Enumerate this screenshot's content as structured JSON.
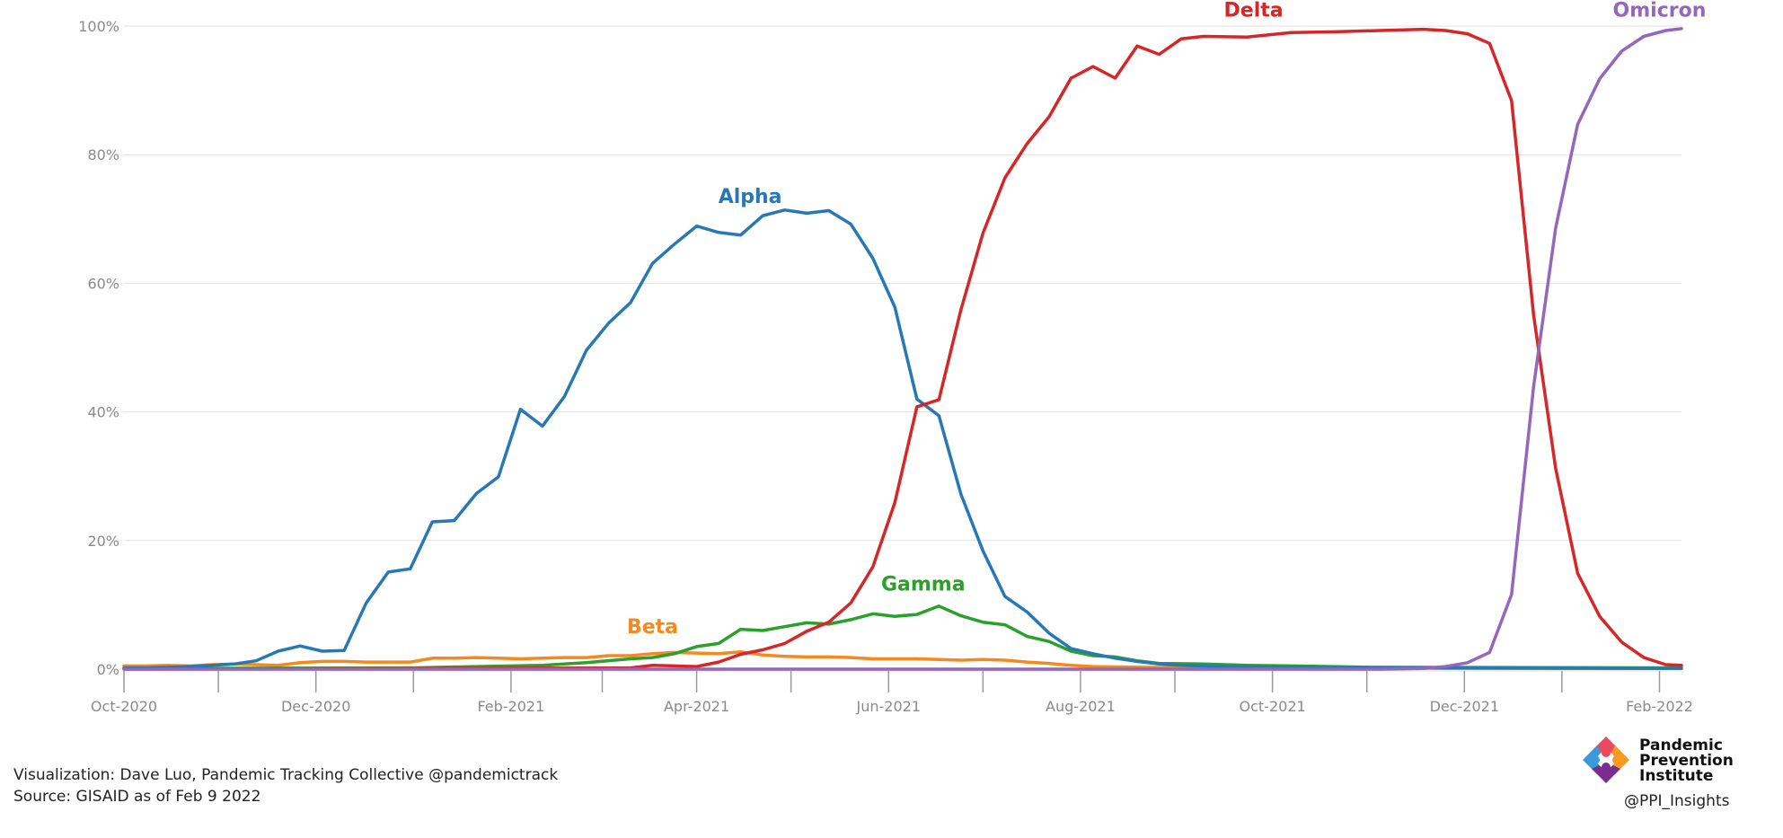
{
  "chart_data": {
    "type": "line",
    "ylim": [
      0,
      100
    ],
    "yticks": [
      {
        "value": 0,
        "label": "0%"
      },
      {
        "value": 20,
        "label": "20%"
      },
      {
        "value": 40,
        "label": "40%"
      },
      {
        "value": 60,
        "label": "60%"
      },
      {
        "value": 80,
        "label": "80%"
      },
      {
        "value": 100,
        "label": "100%"
      }
    ],
    "xlim": [
      "2020-10-01",
      "2022-02-08"
    ],
    "xticks": [
      {
        "date": "2020-10-01",
        "label": "Oct-2020"
      },
      {
        "date": "2020-12-01",
        "label": "Dec-2020"
      },
      {
        "date": "2021-02-01",
        "label": "Feb-2021"
      },
      {
        "date": "2021-04-01",
        "label": "Apr-2021"
      },
      {
        "date": "2021-06-01",
        "label": "Jun-2021"
      },
      {
        "date": "2021-08-01",
        "label": "Aug-2021"
      },
      {
        "date": "2021-10-01",
        "label": "Oct-2021"
      },
      {
        "date": "2021-12-01",
        "label": "Dec-2021"
      },
      {
        "date": "2022-02-01",
        "label": "Feb-2022"
      }
    ],
    "grid": true,
    "legend": "inline labels",
    "series": [
      {
        "name": "Alpha",
        "color": "#2878b5",
        "label_at": {
          "date": "2021-04-18",
          "value": 72.5
        },
        "points": [
          [
            "2020-10-01",
            0.2
          ],
          [
            "2020-10-08",
            0.2
          ],
          [
            "2020-10-15",
            0.3
          ],
          [
            "2020-10-22",
            0.4
          ],
          [
            "2020-10-29",
            0.6
          ],
          [
            "2020-11-05",
            0.8
          ],
          [
            "2020-11-12",
            1.3
          ],
          [
            "2020-11-19",
            2.8
          ],
          [
            "2020-11-26",
            3.6
          ],
          [
            "2020-12-03",
            2.8
          ],
          [
            "2020-12-10",
            2.9
          ],
          [
            "2020-12-17",
            10.3
          ],
          [
            "2020-12-24",
            15.1
          ],
          [
            "2020-12-31",
            15.6
          ],
          [
            "2021-01-07",
            22.9
          ],
          [
            "2021-01-14",
            23.1
          ],
          [
            "2021-01-21",
            27.3
          ],
          [
            "2021-01-28",
            29.9
          ],
          [
            "2021-02-04",
            40.4
          ],
          [
            "2021-02-11",
            37.8
          ],
          [
            "2021-02-18",
            42.4
          ],
          [
            "2021-02-25",
            49.6
          ],
          [
            "2021-03-04",
            53.8
          ],
          [
            "2021-03-11",
            57.0
          ],
          [
            "2021-03-18",
            63.1
          ],
          [
            "2021-03-25",
            66.1
          ],
          [
            "2021-04-01",
            68.9
          ],
          [
            "2021-04-08",
            67.9
          ],
          [
            "2021-04-15",
            67.5
          ],
          [
            "2021-04-22",
            70.5
          ],
          [
            "2021-04-29",
            71.4
          ],
          [
            "2021-05-06",
            70.9
          ],
          [
            "2021-05-13",
            71.3
          ],
          [
            "2021-05-20",
            69.2
          ],
          [
            "2021-05-27",
            63.9
          ],
          [
            "2021-06-03",
            56.3
          ],
          [
            "2021-06-10",
            42.0
          ],
          [
            "2021-06-17",
            39.4
          ],
          [
            "2021-06-24",
            27.2
          ],
          [
            "2021-07-01",
            18.4
          ],
          [
            "2021-07-08",
            11.3
          ],
          [
            "2021-07-15",
            8.9
          ],
          [
            "2021-07-22",
            5.6
          ],
          [
            "2021-07-29",
            3.2
          ],
          [
            "2021-08-05",
            2.4
          ],
          [
            "2021-08-12",
            1.7
          ],
          [
            "2021-08-19",
            1.2
          ],
          [
            "2021-08-26",
            0.8
          ],
          [
            "2021-09-02",
            0.6
          ],
          [
            "2021-09-16",
            0.4
          ],
          [
            "2021-10-01",
            0.3
          ],
          [
            "2021-11-01",
            0.2
          ],
          [
            "2022-02-08",
            0.1
          ]
        ]
      },
      {
        "name": "Beta",
        "color": "#f48a1d",
        "label_at": {
          "date": "2021-03-18",
          "value": 5.6
        },
        "points": [
          [
            "2020-10-01",
            0.5
          ],
          [
            "2020-10-08",
            0.5
          ],
          [
            "2020-10-15",
            0.6
          ],
          [
            "2020-10-22",
            0.5
          ],
          [
            "2020-10-29",
            0.7
          ],
          [
            "2020-11-05",
            0.8
          ],
          [
            "2020-11-12",
            0.7
          ],
          [
            "2020-11-19",
            0.6
          ],
          [
            "2020-11-26",
            1.0
          ],
          [
            "2020-12-03",
            1.2
          ],
          [
            "2020-12-10",
            1.2
          ],
          [
            "2020-12-17",
            1.1
          ],
          [
            "2020-12-24",
            1.1
          ],
          [
            "2020-12-31",
            1.1
          ],
          [
            "2021-01-07",
            1.7
          ],
          [
            "2021-01-14",
            1.7
          ],
          [
            "2021-01-21",
            1.8
          ],
          [
            "2021-01-28",
            1.7
          ],
          [
            "2021-02-04",
            1.6
          ],
          [
            "2021-02-11",
            1.7
          ],
          [
            "2021-02-18",
            1.8
          ],
          [
            "2021-02-25",
            1.8
          ],
          [
            "2021-03-04",
            2.1
          ],
          [
            "2021-03-11",
            2.1
          ],
          [
            "2021-03-18",
            2.4
          ],
          [
            "2021-03-25",
            2.6
          ],
          [
            "2021-04-01",
            2.5
          ],
          [
            "2021-04-08",
            2.4
          ],
          [
            "2021-04-15",
            2.7
          ],
          [
            "2021-04-22",
            2.2
          ],
          [
            "2021-04-29",
            2.0
          ],
          [
            "2021-05-06",
            1.9
          ],
          [
            "2021-05-13",
            1.9
          ],
          [
            "2021-05-20",
            1.8
          ],
          [
            "2021-05-27",
            1.6
          ],
          [
            "2021-06-03",
            1.6
          ],
          [
            "2021-06-10",
            1.6
          ],
          [
            "2021-06-17",
            1.5
          ],
          [
            "2021-06-24",
            1.4
          ],
          [
            "2021-07-01",
            1.5
          ],
          [
            "2021-07-08",
            1.4
          ],
          [
            "2021-07-15",
            1.1
          ],
          [
            "2021-07-22",
            0.9
          ],
          [
            "2021-07-29",
            0.6
          ],
          [
            "2021-08-05",
            0.4
          ],
          [
            "2021-08-19",
            0.3
          ],
          [
            "2021-09-16",
            0.2
          ],
          [
            "2022-02-08",
            0.1
          ]
        ]
      },
      {
        "name": "Gamma",
        "color": "#2ca02c",
        "label_at": {
          "date": "2021-06-12",
          "value": 12.2
        },
        "points": [
          [
            "2020-10-01",
            0.1
          ],
          [
            "2021-01-01",
            0.2
          ],
          [
            "2021-01-21",
            0.4
          ],
          [
            "2021-02-11",
            0.6
          ],
          [
            "2021-02-25",
            1.0
          ],
          [
            "2021-03-11",
            1.6
          ],
          [
            "2021-03-18",
            1.8
          ],
          [
            "2021-03-25",
            2.4
          ],
          [
            "2021-04-01",
            3.5
          ],
          [
            "2021-04-08",
            4.0
          ],
          [
            "2021-04-15",
            6.2
          ],
          [
            "2021-04-22",
            6.0
          ],
          [
            "2021-04-29",
            6.6
          ],
          [
            "2021-05-06",
            7.2
          ],
          [
            "2021-05-13",
            7.0
          ],
          [
            "2021-05-20",
            7.7
          ],
          [
            "2021-05-27",
            8.6
          ],
          [
            "2021-06-03",
            8.2
          ],
          [
            "2021-06-10",
            8.5
          ],
          [
            "2021-06-17",
            9.8
          ],
          [
            "2021-06-24",
            8.3
          ],
          [
            "2021-07-01",
            7.3
          ],
          [
            "2021-07-08",
            6.9
          ],
          [
            "2021-07-15",
            5.1
          ],
          [
            "2021-07-22",
            4.3
          ],
          [
            "2021-07-29",
            2.8
          ],
          [
            "2021-08-05",
            2.1
          ],
          [
            "2021-08-12",
            1.9
          ],
          [
            "2021-08-19",
            1.3
          ],
          [
            "2021-08-26",
            0.9
          ],
          [
            "2021-09-09",
            0.8
          ],
          [
            "2021-09-23",
            0.6
          ],
          [
            "2021-10-07",
            0.5
          ],
          [
            "2021-11-01",
            0.3
          ],
          [
            "2022-02-08",
            0.2
          ]
        ]
      },
      {
        "name": "Delta",
        "color": "#d62728",
        "label_at": {
          "date": "2021-09-25",
          "value": 101.5
        },
        "points": [
          [
            "2020-10-01",
            0.0
          ],
          [
            "2021-03-11",
            0.2
          ],
          [
            "2021-03-18",
            0.6
          ],
          [
            "2021-03-25",
            0.5
          ],
          [
            "2021-04-01",
            0.4
          ],
          [
            "2021-04-08",
            1.1
          ],
          [
            "2021-04-15",
            2.3
          ],
          [
            "2021-04-22",
            3.0
          ],
          [
            "2021-04-29",
            4.0
          ],
          [
            "2021-05-06",
            5.9
          ],
          [
            "2021-05-13",
            7.3
          ],
          [
            "2021-05-20",
            10.3
          ],
          [
            "2021-05-27",
            15.9
          ],
          [
            "2021-06-03",
            25.9
          ],
          [
            "2021-06-10",
            40.8
          ],
          [
            "2021-06-17",
            41.9
          ],
          [
            "2021-06-24",
            55.9
          ],
          [
            "2021-07-01",
            67.8
          ],
          [
            "2021-07-08",
            76.4
          ],
          [
            "2021-07-15",
            81.7
          ],
          [
            "2021-07-22",
            85.9
          ],
          [
            "2021-07-29",
            91.9
          ],
          [
            "2021-08-05",
            93.7
          ],
          [
            "2021-08-12",
            91.9
          ],
          [
            "2021-08-19",
            96.9
          ],
          [
            "2021-08-26",
            95.6
          ],
          [
            "2021-09-02",
            98.0
          ],
          [
            "2021-09-09",
            98.4
          ],
          [
            "2021-09-23",
            98.3
          ],
          [
            "2021-10-07",
            99.0
          ],
          [
            "2021-10-21",
            99.1
          ],
          [
            "2021-11-04",
            99.3
          ],
          [
            "2021-11-18",
            99.5
          ],
          [
            "2021-11-25",
            99.3
          ],
          [
            "2021-12-02",
            98.8
          ],
          [
            "2021-12-09",
            97.3
          ],
          [
            "2021-12-16",
            88.4
          ],
          [
            "2021-12-23",
            55.0
          ],
          [
            "2021-12-30",
            31.2
          ],
          [
            "2022-01-06",
            14.9
          ],
          [
            "2022-01-13",
            8.2
          ],
          [
            "2022-01-20",
            4.2
          ],
          [
            "2022-01-27",
            1.8
          ],
          [
            "2022-02-03",
            0.7
          ],
          [
            "2022-02-08",
            0.6
          ]
        ]
      },
      {
        "name": "Omicron",
        "color": "#9467bd",
        "label_at": {
          "date": "2022-02-01",
          "value": 101.5
        },
        "points": [
          [
            "2020-10-01",
            0.0
          ],
          [
            "2021-11-04",
            0.0
          ],
          [
            "2021-11-18",
            0.1
          ],
          [
            "2021-11-25",
            0.4
          ],
          [
            "2021-12-02",
            1.0
          ],
          [
            "2021-12-09",
            2.6
          ],
          [
            "2021-12-16",
            11.6
          ],
          [
            "2021-12-23",
            44.0
          ],
          [
            "2021-12-30",
            68.6
          ],
          [
            "2022-01-06",
            84.7
          ],
          [
            "2022-01-13",
            91.8
          ],
          [
            "2022-01-20",
            96.1
          ],
          [
            "2022-01-27",
            98.4
          ],
          [
            "2022-02-03",
            99.3
          ],
          [
            "2022-02-08",
            99.6
          ]
        ]
      }
    ]
  },
  "credits": {
    "line1": "Visualization: Dave Luo, Pandemic Tracking Collective @pandemictrack",
    "line2": "Source: GISAID as of Feb 9 2022"
  },
  "logo": {
    "line1": "Pandemic",
    "line2": "Prevention",
    "line3": "Institute",
    "handle": "@PPI_Insights",
    "icon": "ppi-diamond-logo-icon",
    "colors": [
      "#e84a5f",
      "#f59b23",
      "#3a9ad9",
      "#7b2d8e"
    ]
  },
  "style": {
    "grid_color": "#e2e2e2",
    "tick_label_color": "#8a8a8a",
    "axis_color": "#999999"
  }
}
